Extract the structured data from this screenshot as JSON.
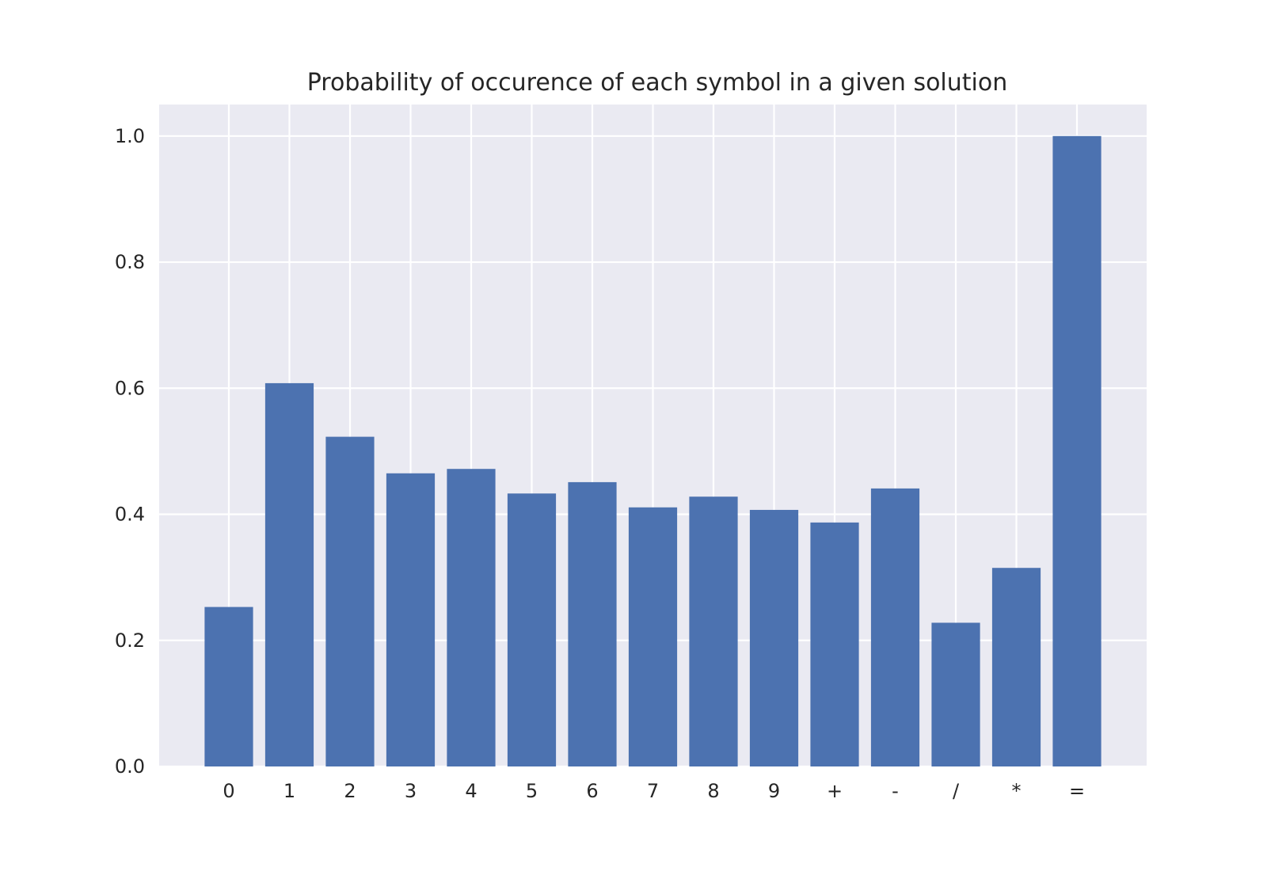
{
  "chart_data": {
    "type": "bar",
    "title": "Probability of occurence of each symbol in a given solution",
    "xlabel": "",
    "ylabel": "",
    "categories": [
      "0",
      "1",
      "2",
      "3",
      "4",
      "5",
      "6",
      "7",
      "8",
      "9",
      "+",
      "-",
      "/",
      "*",
      "="
    ],
    "values": [
      0.253,
      0.608,
      0.523,
      0.465,
      0.472,
      0.433,
      0.451,
      0.411,
      0.428,
      0.407,
      0.387,
      0.441,
      0.228,
      0.315,
      1.0
    ],
    "ylim": [
      0,
      1.05
    ],
    "yticks": [
      0.0,
      0.2,
      0.4,
      0.6,
      0.8,
      1.0
    ],
    "ytick_labels": [
      "0.0",
      "0.2",
      "0.4",
      "0.6",
      "0.8",
      "1.0"
    ],
    "grid": true,
    "legend": "none",
    "colors": {
      "bar": "#4c72b0",
      "plot_background": "#eaeaf2",
      "grid": "#ffffff",
      "text": "#262626"
    }
  }
}
